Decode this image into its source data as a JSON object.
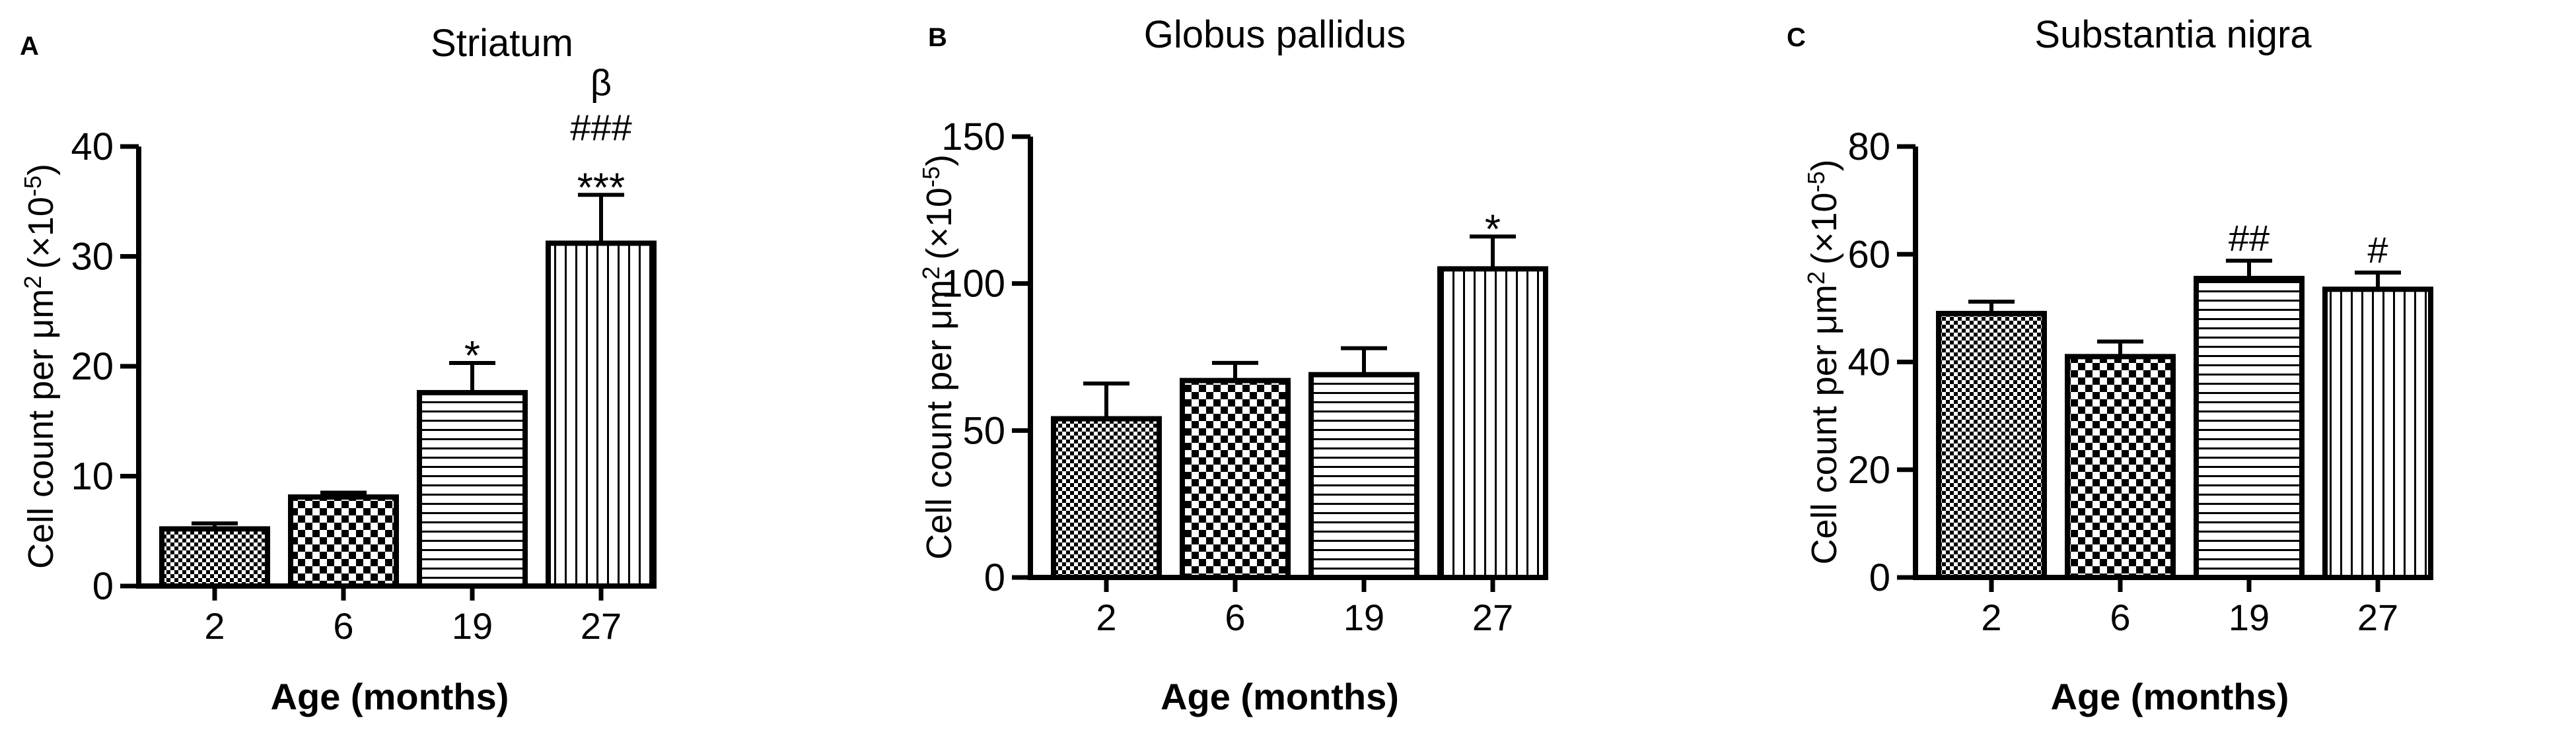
{
  "chart_data": [
    {
      "panel": "A",
      "type": "bar",
      "title": "Striatum",
      "xlabel": "Age (months)",
      "ylabel": "Cell count per μm",
      "ylabel_sup": "2",
      "ylabel_tail": "(×10",
      "ylabel_exp": "-5",
      "ylabel_end": ")",
      "categories": [
        "2",
        "6",
        "19",
        "27"
      ],
      "values": [
        5.2,
        8.1,
        17.6,
        31.2
      ],
      "errors": [
        0.5,
        0.4,
        2.7,
        4.4
      ],
      "annotations": [
        "",
        "",
        "*",
        "***|###|β"
      ],
      "ylim": [
        0,
        40
      ],
      "yticks": [
        0,
        10,
        20,
        30,
        40
      ],
      "patterns": [
        "checker-fine",
        "checker-coarse",
        "horizontal-lines",
        "vertical-lines"
      ]
    },
    {
      "panel": "B",
      "type": "bar",
      "title": "Globus pallidus",
      "xlabel": "Age (months)",
      "ylabel": "Cell count per μm",
      "ylabel_sup": "2",
      "ylabel_tail": "(×10",
      "ylabel_exp": "-5",
      "ylabel_end": ")",
      "categories": [
        "2",
        "6",
        "19",
        "27"
      ],
      "values": [
        54,
        67,
        69,
        105
      ],
      "errors": [
        12,
        6,
        9,
        11
      ],
      "annotations": [
        "",
        "",
        "",
        "*"
      ],
      "ylim": [
        0,
        150
      ],
      "yticks": [
        0,
        50,
        100,
        150
      ],
      "patterns": [
        "checker-fine",
        "checker-coarse",
        "horizontal-lines",
        "vertical-lines"
      ]
    },
    {
      "panel": "C",
      "type": "bar",
      "title": "Substantia nigra",
      "xlabel": "Age (months)",
      "ylabel": "Cell count per μm",
      "ylabel_sup": "2",
      "ylabel_tail": "(×10",
      "ylabel_exp": "-5",
      "ylabel_end": ")",
      "categories": [
        "2",
        "6",
        "19",
        "27"
      ],
      "values": [
        49,
        41,
        55.5,
        53.5
      ],
      "errors": [
        2.2,
        2.8,
        3.3,
        3.1
      ],
      "annotations": [
        "",
        "",
        "##",
        "#"
      ],
      "ylim": [
        0,
        80
      ],
      "yticks": [
        0,
        20,
        40,
        60,
        80
      ],
      "patterns": [
        "checker-fine",
        "checker-coarse",
        "horizontal-lines",
        "vertical-lines"
      ]
    }
  ]
}
